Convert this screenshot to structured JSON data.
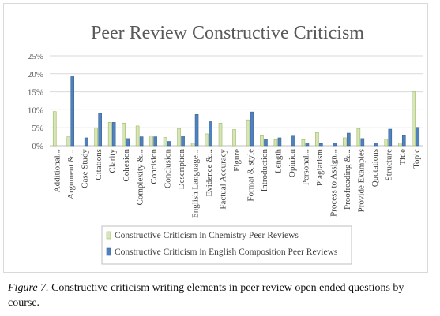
{
  "chart_data": {
    "type": "bar",
    "title": "Peer Review Constructive Criticism",
    "xlabel": "",
    "ylabel": "",
    "ylim": [
      0,
      25
    ],
    "y_ticks": [
      "0%",
      "5%",
      "10%",
      "15%",
      "20%",
      "25%"
    ],
    "grid": true,
    "legend_position": "bottom",
    "categories": [
      "Additional...",
      "Argument &...",
      "Case Study",
      "Citations",
      "Clarity",
      "Cohesion",
      "Complexity &...",
      "Concision",
      "Conclusion",
      "Description",
      "English Language...",
      "Evidence &...",
      "Factual Accuracy",
      "Figure",
      "Format & style",
      "Introduction",
      "Length",
      "Opinion",
      "Personal...",
      "Plagiarism",
      "Process to Assign...",
      "Proofreading &...",
      "Provide Examples",
      "Quotations",
      "Structure",
      "Title",
      "Topic"
    ],
    "series": [
      {
        "name": "Constructive Criticism in Chemistry Peer Reviews",
        "color": "#d7e4bc",
        "stroke": "#9bbb59",
        "values": [
          9.5,
          2.5,
          0,
          5,
          6.5,
          6.3,
          5.5,
          2.8,
          2.3,
          4.8,
          0.7,
          3.3,
          6.3,
          4.5,
          7.2,
          3,
          1.7,
          0,
          1.7,
          3.7,
          0,
          2.2,
          4.8,
          0,
          1.8,
          0.8,
          15
        ]
      },
      {
        "name": "Constructive Criticism in English Composition Peer Reviews",
        "color": "#4f81bd",
        "stroke": "#3a6596",
        "values": [
          0,
          19.2,
          2.2,
          9,
          6.5,
          2,
          2.5,
          2.5,
          1.2,
          2.7,
          8.7,
          6.7,
          0,
          0,
          9.4,
          1.8,
          2.2,
          2.9,
          0.8,
          0.6,
          0.7,
          3.5,
          2,
          0.8,
          4.6,
          3,
          5.1
        ]
      }
    ]
  },
  "caption": {
    "figure_label": "Figure 7.",
    "text": " Constructive criticism writing elements in peer review open ended questions by course."
  }
}
